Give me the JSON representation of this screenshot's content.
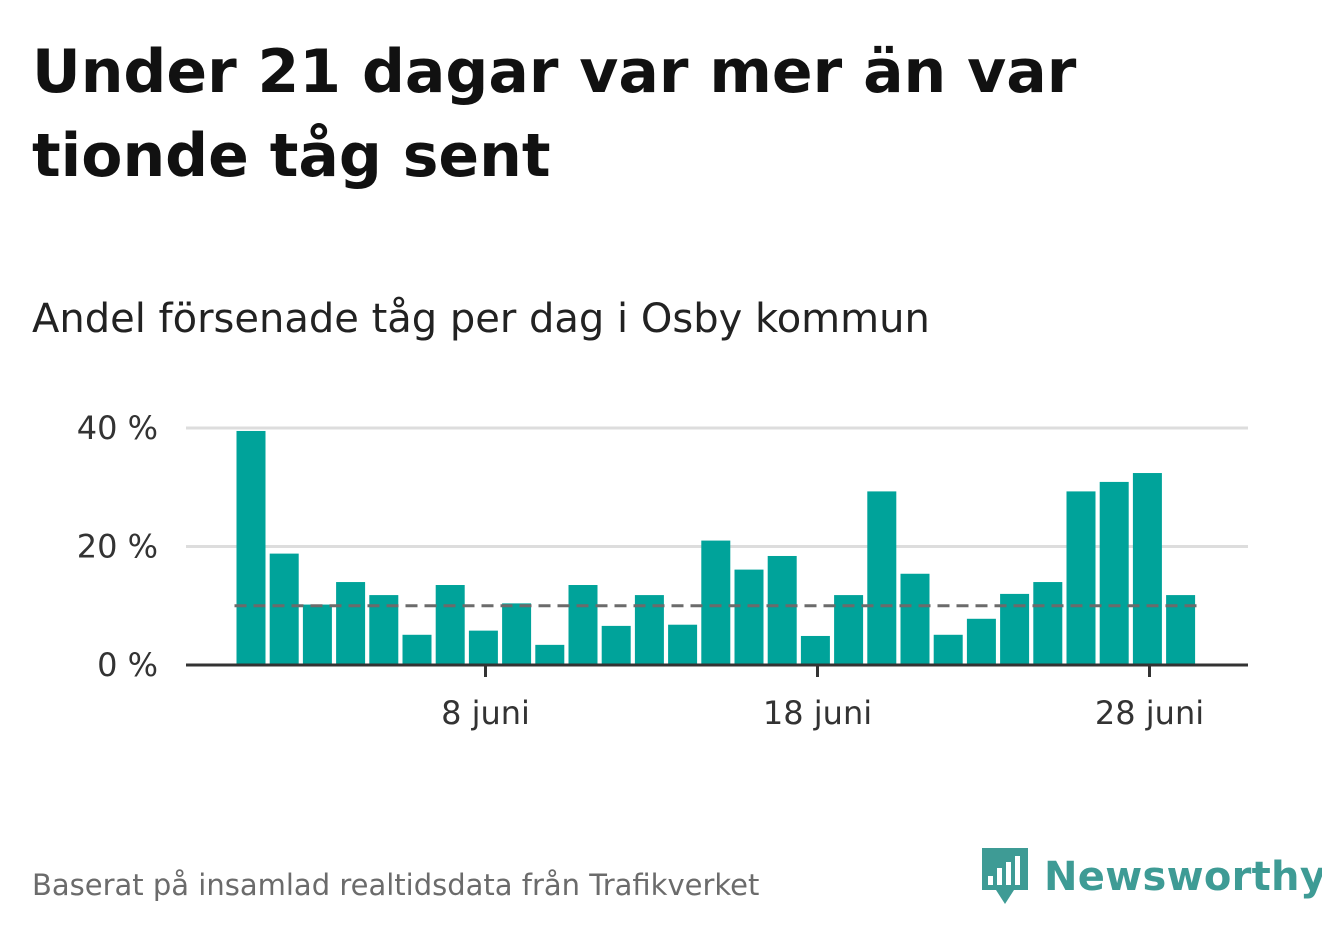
{
  "title": "Under 21 dagar var mer än var tionde tåg sent",
  "subtitle": "Andel försenade tåg per dag i Osby kommun",
  "footer": "Baserat på insamlad realtidsdata från Trafikverket",
  "brand": {
    "name": "Newsworthy",
    "icon": "newsworthy-logo-icon",
    "color": "#3e9b95"
  },
  "chart_data": {
    "type": "bar",
    "title": "Under 21 dagar var mer än var tionde tåg sent",
    "subtitle": "Andel försenade tåg per dag i Osby kommun",
    "x": [
      1,
      2,
      3,
      4,
      5,
      6,
      7,
      8,
      9,
      10,
      11,
      12,
      13,
      14,
      15,
      16,
      17,
      18,
      19,
      20,
      21,
      22,
      23,
      24,
      25,
      26,
      27,
      28,
      29
    ],
    "values": [
      39.5,
      18.8,
      10.2,
      14.0,
      11.8,
      5.1,
      13.5,
      5.8,
      10.4,
      3.4,
      13.5,
      6.6,
      11.8,
      6.8,
      21.0,
      16.1,
      18.4,
      4.9,
      11.8,
      29.3,
      15.4,
      5.1,
      7.8,
      12.0,
      14.0,
      29.3,
      30.9,
      32.4,
      11.8
    ],
    "ylim": [
      0,
      40
    ],
    "yticks": [
      0,
      20,
      40
    ],
    "ytick_labels": [
      "0 %",
      "20 %",
      "40 %"
    ],
    "xticks": [
      8,
      18,
      28
    ],
    "xtick_labels": [
      "8 juni",
      "18 juni",
      "28 juni"
    ],
    "reference_line": 10,
    "grid": true,
    "colors": {
      "bar": "#00a39a",
      "reference": "#6b6b6b",
      "grid": "#dddddd",
      "axis": "#333333"
    }
  }
}
